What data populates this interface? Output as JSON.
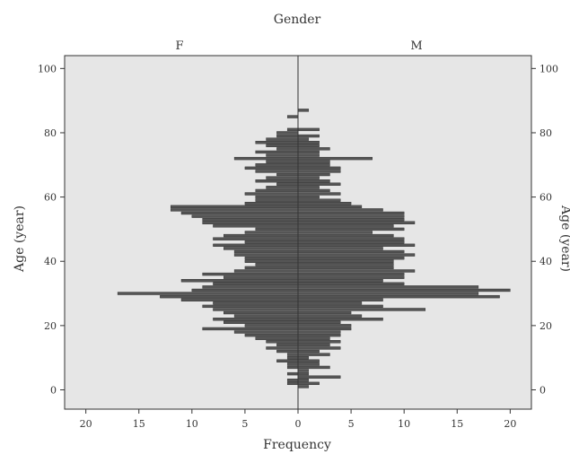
{
  "chart_data": {
    "type": "bar",
    "orientation": "horizontal",
    "subtype": "population-pyramid",
    "title": "Gender",
    "xlabel": "Frequency",
    "ylabel": "Age (year)",
    "ylabel_right": "Age (year)",
    "panels": [
      "F",
      "M"
    ],
    "xlim": [
      -22,
      22
    ],
    "ylim": [
      -6,
      104
    ],
    "x_ticks": [
      {
        "value": -20,
        "label": "20"
      },
      {
        "value": -15,
        "label": "15"
      },
      {
        "value": -10,
        "label": "10"
      },
      {
        "value": -5,
        "label": "5"
      },
      {
        "value": 0,
        "label": "0"
      },
      {
        "value": 5,
        "label": "5"
      },
      {
        "value": 10,
        "label": "10"
      },
      {
        "value": 15,
        "label": "15"
      },
      {
        "value": 20,
        "label": "20"
      }
    ],
    "y_ticks": [
      0,
      20,
      40,
      60,
      80,
      100
    ],
    "grid": false,
    "bar_color": "#555555",
    "plot_background": "#e6e6e6",
    "ages": [
      1,
      2,
      3,
      4,
      5,
      6,
      7,
      8,
      9,
      10,
      11,
      12,
      13,
      14,
      15,
      16,
      17,
      18,
      19,
      20,
      21,
      22,
      23,
      24,
      25,
      26,
      27,
      28,
      29,
      30,
      31,
      32,
      33,
      34,
      35,
      36,
      37,
      38,
      39,
      40,
      41,
      42,
      43,
      44,
      45,
      46,
      47,
      48,
      49,
      50,
      51,
      52,
      53,
      54,
      55,
      56,
      57,
      58,
      59,
      60,
      61,
      62,
      63,
      64,
      65,
      66,
      67,
      68,
      69,
      70,
      71,
      72,
      73,
      74,
      75,
      76,
      77,
      78,
      79,
      80,
      81,
      82,
      83,
      84,
      85,
      86,
      87
    ],
    "series": [
      {
        "name": "F",
        "values": [
          0,
          1,
          1,
          0,
          1,
          0,
          1,
          1,
          2,
          1,
          1,
          2,
          3,
          2,
          3,
          4,
          5,
          6,
          9,
          5,
          7,
          8,
          6,
          7,
          8,
          9,
          8,
          11,
          13,
          17,
          10,
          9,
          8,
          11,
          7,
          9,
          6,
          5,
          4,
          5,
          5,
          6,
          6,
          7,
          8,
          5,
          8,
          7,
          5,
          4,
          8,
          9,
          9,
          10,
          11,
          12,
          12,
          5,
          4,
          4,
          5,
          4,
          3,
          2,
          4,
          3,
          2,
          4,
          5,
          4,
          3,
          6,
          3,
          4,
          2,
          3,
          4,
          3,
          2,
          2,
          1,
          0,
          0,
          0,
          1,
          0,
          0
        ]
      },
      {
        "name": "M",
        "values": [
          1,
          2,
          1,
          4,
          1,
          1,
          3,
          2,
          2,
          1,
          3,
          2,
          4,
          3,
          4,
          3,
          4,
          4,
          5,
          5,
          4,
          8,
          6,
          5,
          12,
          8,
          6,
          8,
          19,
          17,
          20,
          17,
          10,
          8,
          10,
          10,
          11,
          9,
          9,
          9,
          10,
          11,
          10,
          8,
          11,
          10,
          10,
          9,
          7,
          10,
          9,
          11,
          10,
          10,
          10,
          8,
          6,
          5,
          4,
          2,
          4,
          3,
          2,
          4,
          3,
          2,
          3,
          4,
          4,
          3,
          3,
          7,
          2,
          2,
          3,
          2,
          2,
          1,
          2,
          0,
          2,
          0,
          0,
          0,
          0,
          0,
          1
        ]
      }
    ]
  }
}
